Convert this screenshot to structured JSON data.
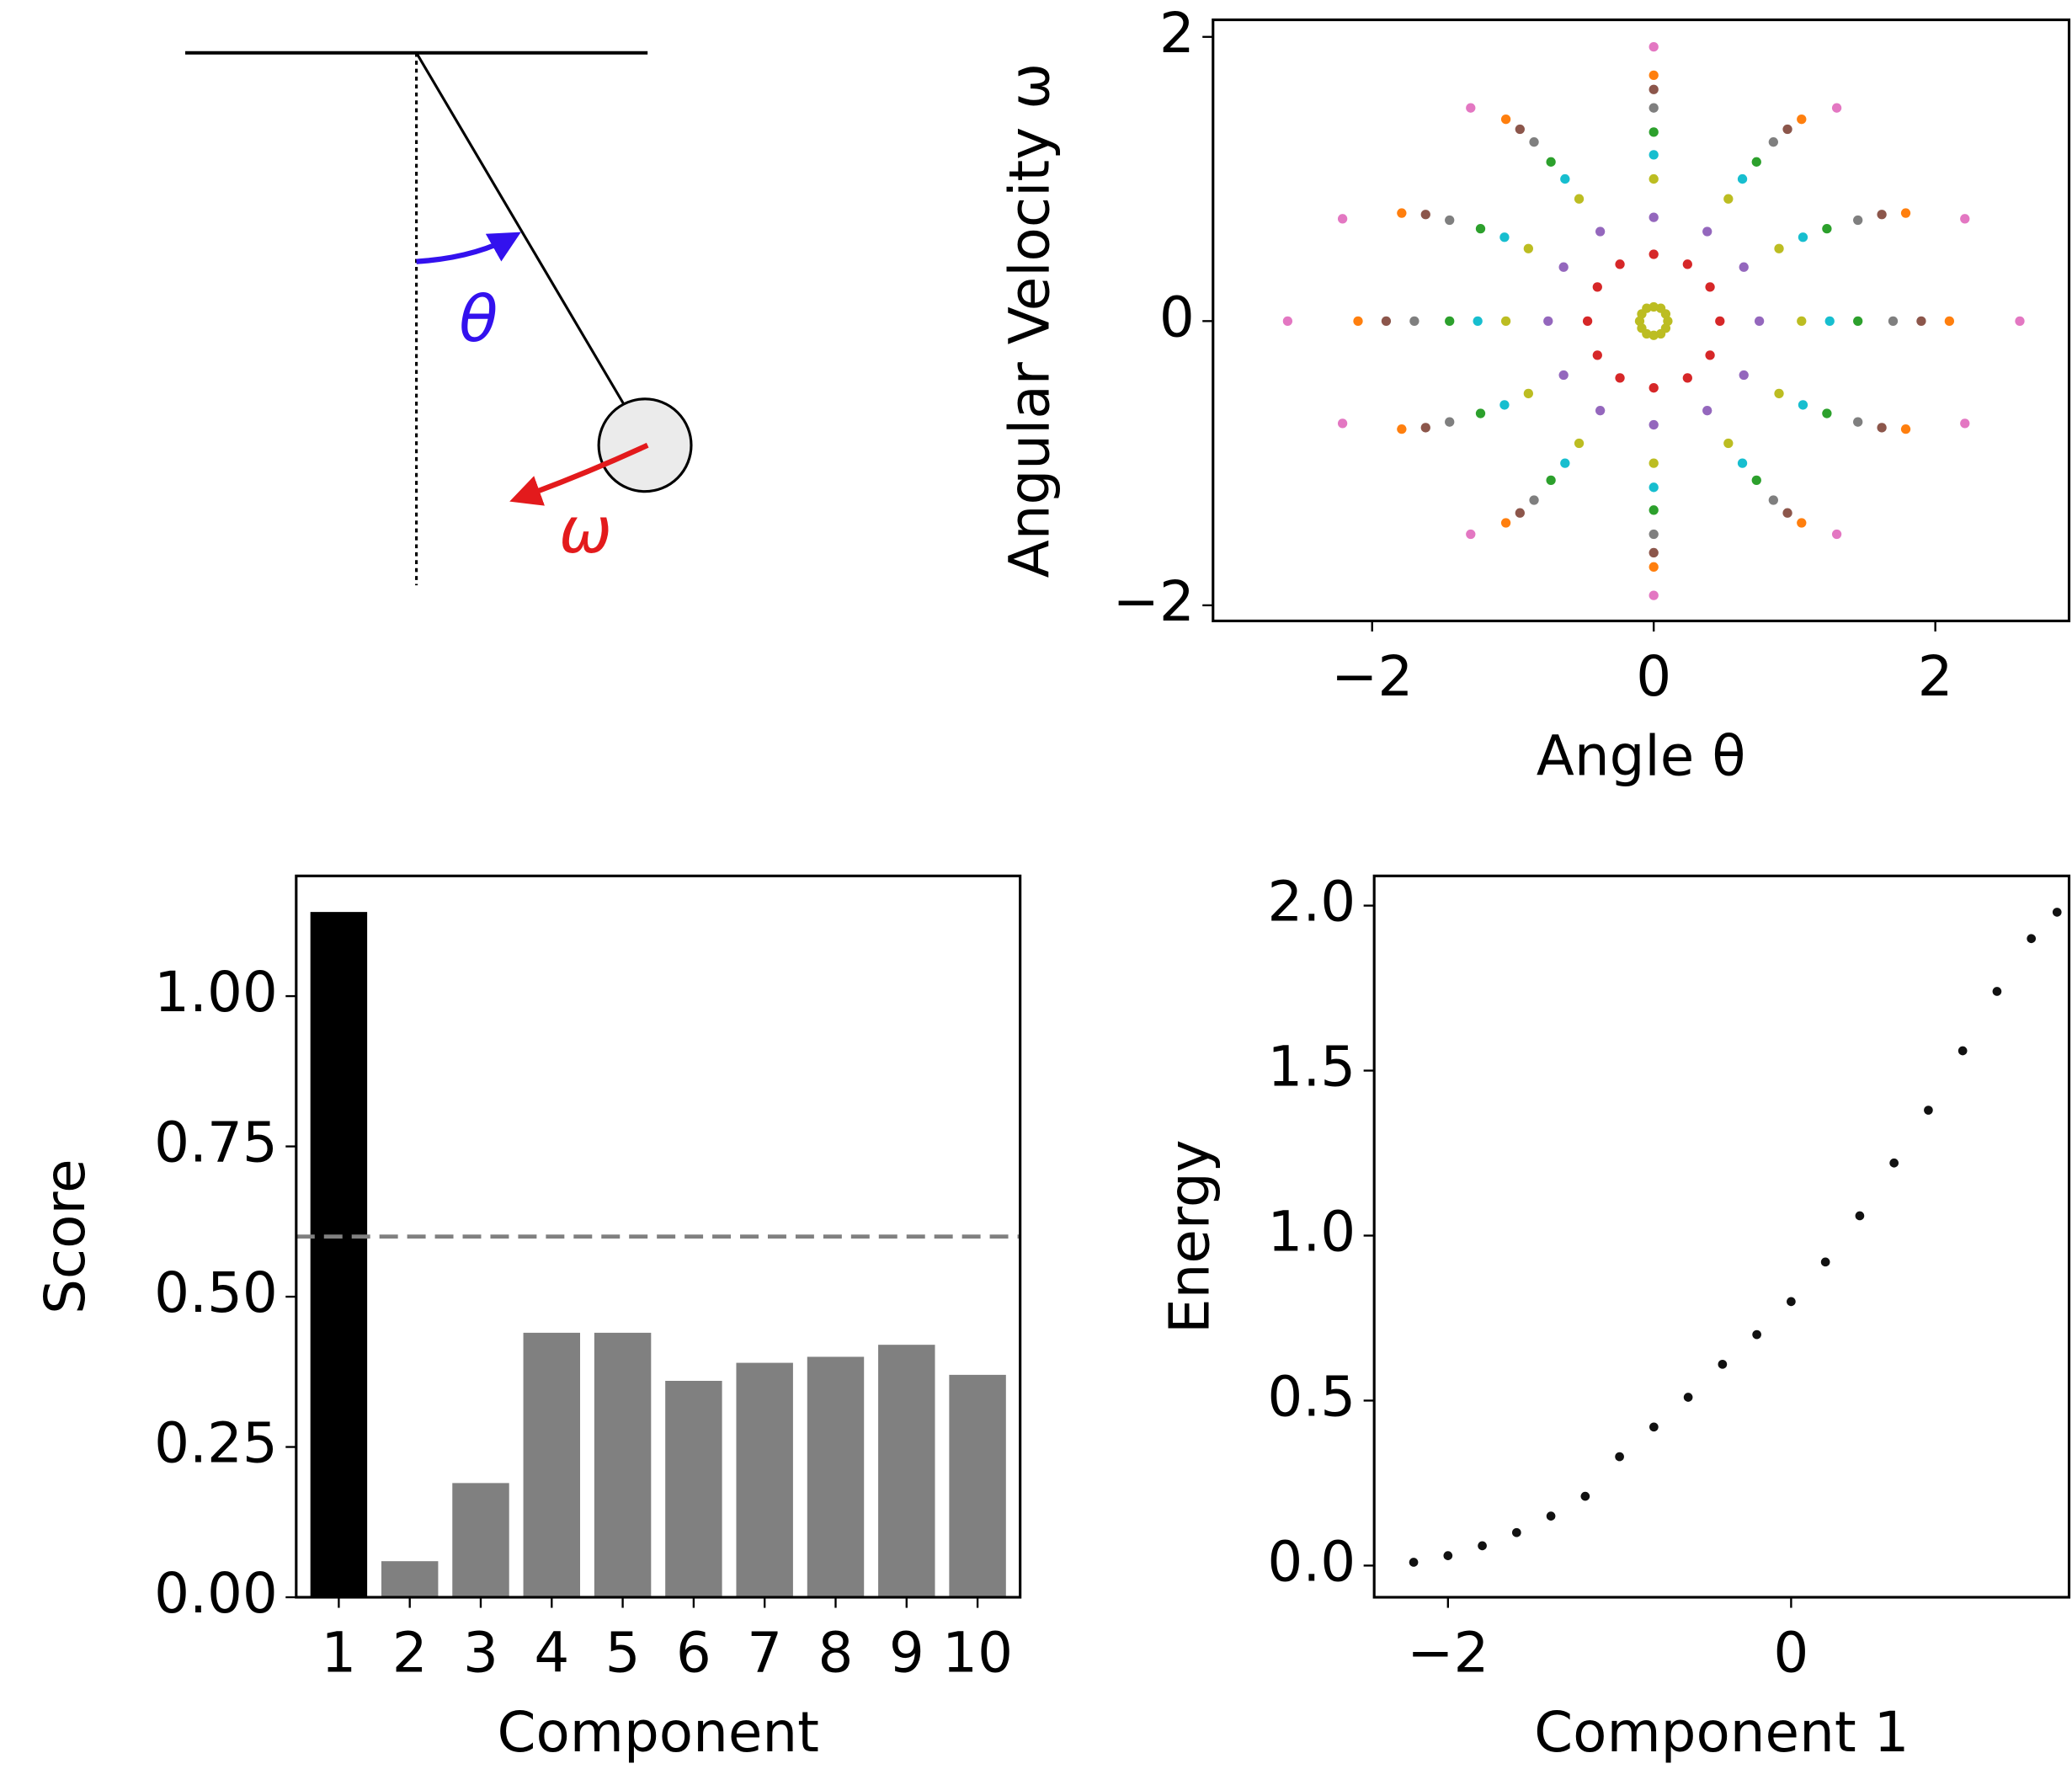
{
  "diagram": {
    "theta_label": "θ",
    "omega_label": "ω"
  },
  "chart_data": [
    {
      "type": "scatter",
      "x_label": "Angle θ",
      "y_label": "Angular Velocity ω",
      "xlim": [
        -3.13,
        2.95
      ],
      "ylim": [
        -2.11,
        2.12
      ],
      "xticks": [
        {
          "value": -2,
          "label": "−2"
        },
        0,
        2
      ],
      "yticks": [
        {
          "value": -2,
          "label": "−2"
        },
        0,
        2
      ],
      "series": [
        {
          "color": "#bcbd22",
          "x": [
            0.1,
            0.085,
            0.05,
            0,
            -0.05,
            -0.085,
            -0.1,
            -0.085,
            -0.05,
            0,
            0.05,
            0.085
          ],
          "y": [
            0,
            0.05,
            0.09,
            0.1,
            0.09,
            0.05,
            0,
            -0.05,
            -0.09,
            -0.1,
            -0.09,
            -0.05
          ]
        },
        {
          "color": "#d62728",
          "x": [
            0.47,
            0.4,
            0.24,
            0,
            -0.24,
            -0.4,
            -0.47,
            -0.4,
            -0.24,
            0,
            0.24,
            0.4
          ],
          "y": [
            0,
            0.24,
            0.4,
            0.47,
            0.4,
            0.24,
            0,
            -0.24,
            -0.4,
            -0.47,
            -0.4,
            -0.24
          ]
        },
        {
          "color": "#9467bd",
          "x": [
            0.75,
            0.64,
            0.38,
            0,
            -0.38,
            -0.64,
            -0.75,
            -0.64,
            -0.38,
            0,
            0.38,
            0.64
          ],
          "y": [
            0,
            0.38,
            0.63,
            0.73,
            0.63,
            0.38,
            0,
            -0.38,
            -0.63,
            -0.73,
            -0.63,
            -0.38
          ]
        },
        {
          "color": "#bcbd22",
          "x": [
            1.05,
            0.89,
            0.53,
            0,
            -0.53,
            -0.89,
            -1.05,
            -0.89,
            -0.53,
            0,
            0.53,
            0.89
          ],
          "y": [
            0,
            0.51,
            0.86,
            1.0,
            0.86,
            0.51,
            0,
            -0.51,
            -0.86,
            -1.0,
            -0.86,
            -0.51
          ]
        },
        {
          "color": "#17becf",
          "x": [
            1.25,
            1.06,
            0.63,
            0,
            -0.63,
            -1.06,
            -1.25,
            -1.06,
            -0.63,
            0,
            0.63,
            1.06
          ],
          "y": [
            0,
            0.59,
            1.0,
            1.17,
            1.0,
            0.59,
            0,
            -0.59,
            -1.0,
            -1.17,
            -1.0,
            -0.59
          ]
        },
        {
          "color": "#2ca02c",
          "x": [
            1.45,
            1.23,
            0.73,
            0,
            -0.73,
            -1.23,
            -1.45,
            -1.23,
            -0.73,
            0,
            0.73,
            1.23
          ],
          "y": [
            0,
            0.65,
            1.12,
            1.33,
            1.12,
            0.65,
            0,
            -0.65,
            -1.12,
            -1.33,
            -1.12,
            -0.65
          ]
        },
        {
          "color": "#7f7f7f",
          "x": [
            1.7,
            1.45,
            0.85,
            0,
            -0.85,
            -1.45,
            -1.7,
            -1.45,
            -0.85,
            0,
            0.85,
            1.45
          ],
          "y": [
            0,
            0.71,
            1.26,
            1.5,
            1.26,
            0.71,
            0,
            -0.71,
            -1.26,
            -1.5,
            -1.26,
            -0.71
          ]
        },
        {
          "color": "#8c564b",
          "x": [
            1.9,
            1.62,
            0.95,
            0,
            -0.95,
            -1.62,
            -1.9,
            -1.62,
            -0.95,
            0,
            0.95,
            1.62
          ],
          "y": [
            0,
            0.75,
            1.35,
            1.63,
            1.35,
            0.75,
            0,
            -0.75,
            -1.35,
            -1.63,
            -1.35,
            -0.75
          ]
        },
        {
          "color": "#ff7f0e",
          "x": [
            2.1,
            1.79,
            1.05,
            0,
            -1.05,
            -1.79,
            -2.1,
            -1.79,
            -1.05,
            0,
            1.05,
            1.79
          ],
          "y": [
            0,
            0.76,
            1.42,
            1.73,
            1.42,
            0.76,
            0,
            -0.76,
            -1.42,
            -1.73,
            -1.42,
            -0.76
          ]
        },
        {
          "color": "#e377c2",
          "x": [
            2.6,
            2.21,
            1.3,
            0,
            -1.3,
            -2.21,
            -2.6,
            -2.21,
            -1.3,
            0,
            1.3,
            2.21
          ],
          "y": [
            0,
            0.72,
            1.5,
            1.93,
            1.5,
            0.72,
            0,
            -0.72,
            -1.5,
            -1.93,
            -1.5,
            -0.72
          ]
        }
      ]
    },
    {
      "type": "bar",
      "x_label": "Component",
      "y_label": "Score",
      "categories": [
        "1",
        "2",
        "3",
        "4",
        "5",
        "6",
        "7",
        "8",
        "9",
        "10"
      ],
      "values": [
        1.14,
        0.06,
        0.19,
        0.44,
        0.44,
        0.36,
        0.39,
        0.4,
        0.42,
        0.37
      ],
      "colors": [
        "#000000",
        "#808080",
        "#808080",
        "#808080",
        "#808080",
        "#808080",
        "#808080",
        "#808080",
        "#808080",
        "#808080"
      ],
      "hline": 0.6,
      "hline_color": "#808080",
      "ylim": [
        0,
        1.2
      ],
      "yticks": [
        {
          "value": 0,
          "label": "0.00"
        },
        {
          "value": 0.25,
          "label": "0.25"
        },
        {
          "value": 0.5,
          "label": "0.50"
        },
        {
          "value": 0.75,
          "label": "0.75"
        },
        {
          "value": 1,
          "label": "1.00"
        }
      ]
    },
    {
      "type": "scatter",
      "x_label": "Component 1",
      "y_label": "Energy",
      "xlim": [
        -2.43,
        1.62
      ],
      "ylim": [
        -0.096,
        2.09
      ],
      "xticks": [
        {
          "value": -2,
          "label": "−2"
        },
        0
      ],
      "yticks": [
        {
          "value": 0,
          "label": "0.0"
        },
        0.5,
        {
          "value": 1,
          "label": "1.0"
        },
        1.5,
        {
          "value": 2,
          "label": "2.0"
        }
      ],
      "series": [
        {
          "color": "#111111",
          "x": [
            -2.2,
            -2.0,
            -1.8,
            -1.6,
            -1.4,
            -1.2,
            -1.0,
            -0.8,
            -0.6,
            -0.4,
            -0.2,
            0,
            0.2,
            0.4,
            0.6,
            0.8,
            1.0,
            1.2,
            1.4,
            1.55
          ],
          "y": [
            0.01,
            0.03,
            0.06,
            0.1,
            0.15,
            0.21,
            0.33,
            0.42,
            0.51,
            0.61,
            0.7,
            0.8,
            0.92,
            1.06,
            1.22,
            1.38,
            1.56,
            1.74,
            1.9,
            1.98
          ]
        }
      ]
    }
  ]
}
